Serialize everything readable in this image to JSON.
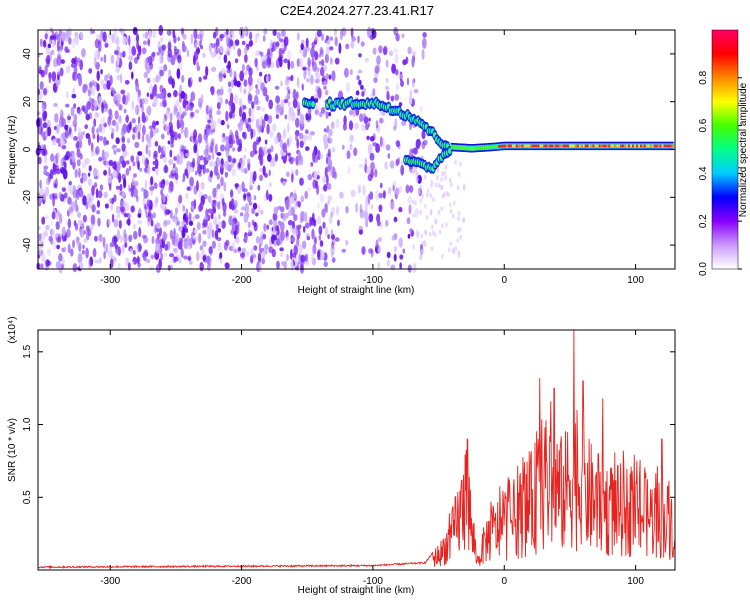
{
  "title": "C2E4.2024.277.23.41.R17",
  "chart_data": [
    {
      "type": "heatmap",
      "xlabel": "Height of straight line (km)",
      "ylabel": "Frequency (Hz)",
      "xlim": [
        -355,
        130
      ],
      "ylim": [
        -50,
        50
      ],
      "xticks": [
        -300,
        -200,
        -100,
        0,
        100
      ],
      "yticks": [
        -40,
        -20,
        0,
        20,
        40
      ],
      "colorbar": {
        "label": "Normalized spectral amplitude",
        "range": [
          0,
          1
        ],
        "ticks": [
          0.0,
          0.2,
          0.4,
          0.6,
          0.8
        ],
        "colors": [
          "#ffffff",
          "#cc99ff",
          "#8800ff",
          "#0000ff",
          "#00ccff",
          "#00ff88",
          "#44ff00",
          "#ffff00",
          "#ff8800",
          "#ff0000",
          "#ff0066"
        ]
      },
      "features": {
        "noise_region_x": [
          -355,
          -60
        ],
        "noise_sparse_x": [
          -130,
          -60
        ],
        "main_ridge": [
          {
            "x": -150,
            "y": 19
          },
          {
            "x": -130,
            "y": 19
          },
          {
            "x": -110,
            "y": 19.5
          },
          {
            "x": -95,
            "y": 19
          },
          {
            "x": -80,
            "y": 16
          },
          {
            "x": -65,
            "y": 12
          },
          {
            "x": -55,
            "y": 7
          },
          {
            "x": -48,
            "y": 3
          },
          {
            "x": -40,
            "y": 1
          },
          {
            "x": -25,
            "y": 0.5
          },
          {
            "x": -10,
            "y": 1
          },
          {
            "x": 0,
            "y": 1.5
          },
          {
            "x": 130,
            "y": 1.5
          }
        ],
        "lower_branch": [
          {
            "x": -75,
            "y": -4
          },
          {
            "x": -65,
            "y": -6
          },
          {
            "x": -55,
            "y": -8
          },
          {
            "x": -48,
            "y": -3
          },
          {
            "x": -40,
            "y": 0
          }
        ]
      }
    },
    {
      "type": "line",
      "xlabel": "Height of straight line (km)",
      "ylabel": "SNR (10 * v/v)",
      "y_multiplier_label": "(x10⁴)",
      "xlim": [
        -355,
        130
      ],
      "ylim": [
        0,
        1.65
      ],
      "xticks": [
        -300,
        -200,
        -100,
        0,
        100
      ],
      "yticks": [
        0.5,
        1.0,
        1.5
      ],
      "ytick_labels": [
        "0.5",
        "1.0",
        "1.5"
      ],
      "series": [
        {
          "color": "#e8231f",
          "envelope": [
            {
              "x": -355,
              "y": 0.02
            },
            {
              "x": -100,
              "y": 0.03
            },
            {
              "x": -60,
              "y": 0.05
            },
            {
              "x": -48,
              "y": 0.2
            },
            {
              "x": -40,
              "y": 0.38
            },
            {
              "x": -32,
              "y": 0.7
            },
            {
              "x": -28,
              "y": 0.85
            },
            {
              "x": -24,
              "y": 0.35
            },
            {
              "x": -20,
              "y": 0.1
            },
            {
              "x": -14,
              "y": 0.35
            },
            {
              "x": -8,
              "y": 0.45
            },
            {
              "x": 0,
              "y": 0.5
            },
            {
              "x": 10,
              "y": 0.62
            },
            {
              "x": 20,
              "y": 0.75
            },
            {
              "x": 28,
              "y": 0.95
            },
            {
              "x": 35,
              "y": 1.0
            },
            {
              "x": 45,
              "y": 0.85
            },
            {
              "x": 52,
              "y": 1.1
            },
            {
              "x": 60,
              "y": 0.95
            },
            {
              "x": 70,
              "y": 0.75
            },
            {
              "x": 80,
              "y": 0.7
            },
            {
              "x": 95,
              "y": 0.68
            },
            {
              "x": 110,
              "y": 0.62
            },
            {
              "x": 130,
              "y": 0.55
            }
          ],
          "peaks": [
            {
              "x": -28,
              "y": 0.9
            },
            {
              "x": 27,
              "y": 1.32
            },
            {
              "x": 38,
              "y": 1.25
            },
            {
              "x": 53,
              "y": 1.65
            },
            {
              "x": 60,
              "y": 1.3
            },
            {
              "x": 75,
              "y": 1.18
            },
            {
              "x": 120,
              "y": 0.9
            }
          ]
        }
      ]
    }
  ]
}
